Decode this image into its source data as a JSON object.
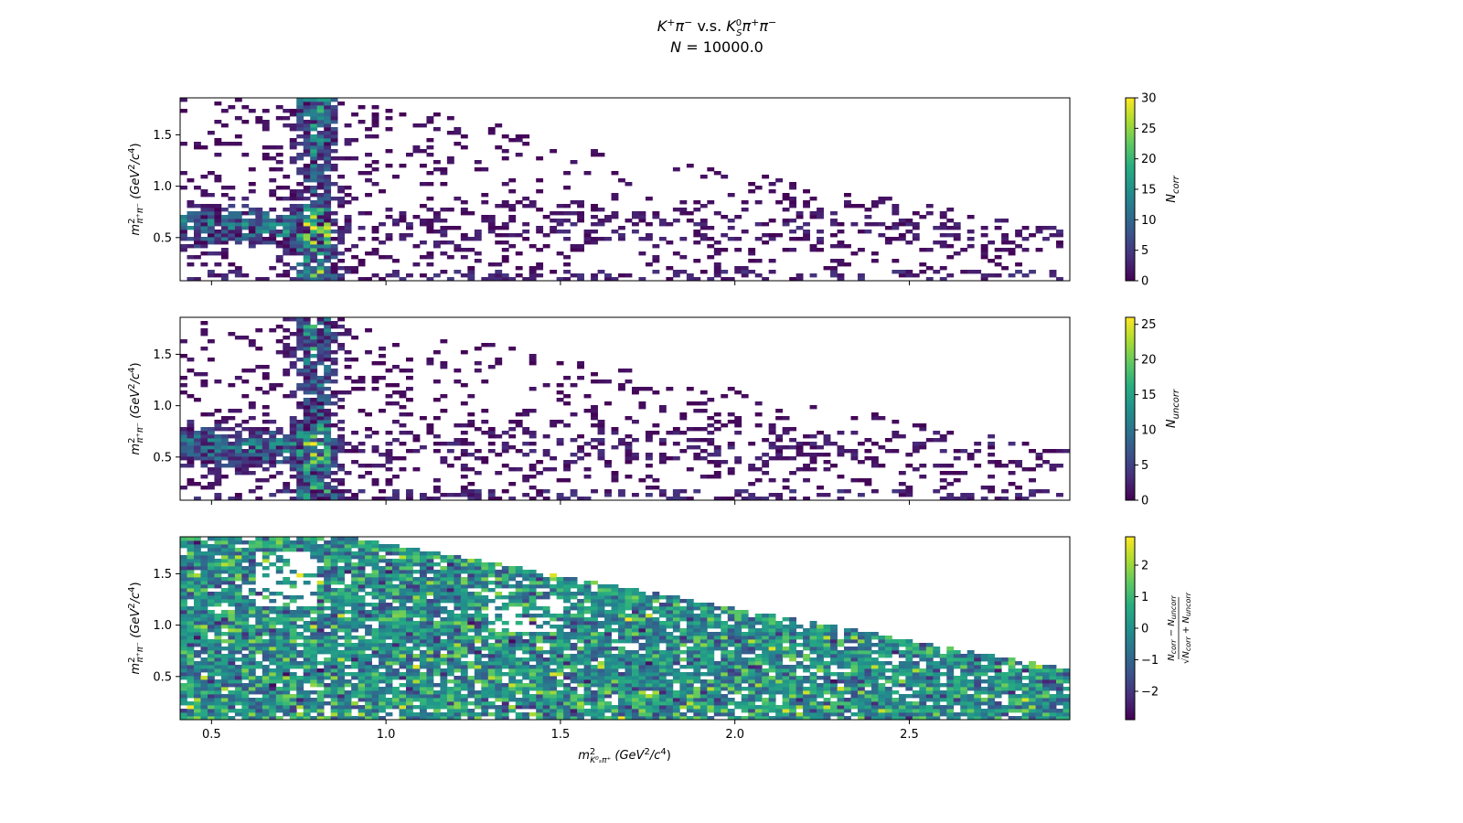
{
  "figure": {
    "title_line1": "K⁺π⁻  v.s.  K⁰_Sπ⁺π⁻",
    "title_line2": "N = 10000.0",
    "colormap": "viridis",
    "empty_color": "#ffffff"
  },
  "chart_data": [
    {
      "type": "heatmap",
      "title": "",
      "xlabel": "m²_{K⁰_S π⁺} (GeV²/c⁴)",
      "ylabel": "m²_{π⁺π⁻} (GeV²/c⁴)",
      "xlim": [
        0.41,
        2.96
      ],
      "ylim": [
        0.08,
        1.86
      ],
      "xticks": [
        "0.5",
        "1.0",
        "1.5",
        "2.0",
        "2.5"
      ],
      "yticks": [
        "0.5",
        "1.0",
        "1.5"
      ],
      "show_xtick_labels": false,
      "colorbar": {
        "label": "N_corr",
        "range": [
          0,
          30
        ],
        "ticks": [
          "0",
          "5",
          "10",
          "15",
          "20",
          "25",
          "30"
        ]
      },
      "features": {
        "kstar_band_x": 0.8,
        "rho_band_y": 0.6,
        "peak_value": 30
      }
    },
    {
      "type": "heatmap",
      "title": "",
      "xlabel": "",
      "ylabel": "m²_{π⁺π⁻} (GeV²/c⁴)",
      "xlim": [
        0.41,
        2.96
      ],
      "ylim": [
        0.08,
        1.86
      ],
      "xticks": [
        "0.5",
        "1.0",
        "1.5",
        "2.0",
        "2.5"
      ],
      "yticks": [
        "0.5",
        "1.0",
        "1.5"
      ],
      "show_xtick_labels": false,
      "colorbar": {
        "label": "N_uncorr",
        "range": [
          0,
          26
        ],
        "ticks": [
          "0",
          "5",
          "10",
          "15",
          "20",
          "25"
        ]
      },
      "features": {
        "kstar_band_x": 0.8,
        "rho_band_y": 0.6,
        "peak_value": 26
      }
    },
    {
      "type": "heatmap",
      "title": "",
      "xlabel": "m²_{K⁰_S π⁺} (GeV²/c⁴)",
      "ylabel": "m²_{π⁺π⁻} (GeV²/c⁴)",
      "xlim": [
        0.41,
        2.96
      ],
      "ylim": [
        0.08,
        1.86
      ],
      "xticks": [
        "0.5",
        "1.0",
        "1.5",
        "2.0",
        "2.5"
      ],
      "yticks": [
        "0.5",
        "1.0",
        "1.5"
      ],
      "show_xtick_labels": true,
      "colorbar": {
        "label": "(N_corr − N_uncorr) / √(N_corr + N_uncorr)",
        "range": [
          -2.9,
          2.9
        ],
        "ticks": [
          "−2",
          "−1",
          "0",
          "1",
          "2"
        ]
      },
      "features": {
        "value_range": [
          -2.9,
          2.9
        ]
      }
    }
  ]
}
